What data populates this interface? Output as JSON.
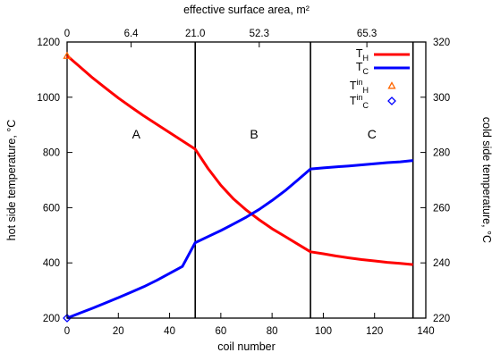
{
  "chart_data": {
    "type": "line",
    "xlabel": "coil number",
    "x2label": "effective surface area, m²",
    "ylabel": "hot side temperature, °C",
    "y2label": "cold side temperature, °C",
    "xlim": [
      0,
      140
    ],
    "ylim": [
      200,
      1200
    ],
    "y2lim": [
      220,
      320
    ],
    "x_ticks": [
      0,
      20,
      40,
      60,
      80,
      100,
      120,
      140
    ],
    "y_ticks": [
      200,
      400,
      600,
      800,
      1000,
      1200
    ],
    "y2_ticks": [
      220,
      240,
      260,
      280,
      300,
      320
    ],
    "x2_ticks": [
      {
        "x": 0,
        "label": "0"
      },
      {
        "x": 25,
        "label": "6.4"
      },
      {
        "x": 50,
        "label": "21.0"
      },
      {
        "x": 75,
        "label": "52.3"
      },
      {
        "x": 117,
        "label": "65.3"
      }
    ],
    "vertical_lines": [
      50,
      95,
      135
    ],
    "regions": [
      {
        "label": "A",
        "x": 27,
        "y": 850
      },
      {
        "label": "B",
        "x": 73,
        "y": 850
      },
      {
        "label": "C",
        "x": 119,
        "y": 850
      }
    ],
    "series": [
      {
        "name": "T_H",
        "legend_main": "T",
        "legend_sub": "H",
        "axis": "left",
        "color": "#ff0000",
        "x": [
          0,
          5,
          10,
          15,
          20,
          25,
          30,
          35,
          40,
          45,
          50,
          55,
          60,
          65,
          70,
          75,
          80,
          85,
          90,
          95,
          100,
          105,
          110,
          115,
          120,
          125,
          130,
          135
        ],
        "y": [
          1150,
          1110,
          1070,
          1033,
          997,
          964,
          932,
          902,
          872,
          842,
          812,
          742,
          681,
          631,
          591,
          556,
          524,
          496,
          468,
          440,
          433,
          425,
          418,
          412,
          407,
          402,
          398,
          394
        ]
      },
      {
        "name": "T_C",
        "legend_main": "T",
        "legend_sub": "C",
        "axis": "right",
        "color": "#0000ff",
        "x": [
          0,
          5,
          10,
          15,
          20,
          25,
          30,
          35,
          40,
          45,
          50,
          55,
          60,
          65,
          70,
          75,
          80,
          85,
          90,
          95,
          100,
          105,
          110,
          115,
          120,
          125,
          130,
          135
        ],
        "y": [
          220.0,
          221.8,
          223.6,
          225.5,
          227.4,
          229.4,
          231.4,
          233.7,
          236.2,
          238.7,
          247.3,
          249.5,
          251.7,
          254.1,
          256.6,
          259.4,
          262.6,
          266.1,
          270.0,
          274.0,
          274.4,
          274.8,
          275.1,
          275.5,
          275.9,
          276.3,
          276.6,
          277.1
        ]
      }
    ],
    "markers": [
      {
        "name": "T^in_H",
        "legend_main": "T",
        "legend_sup": "in",
        "legend_sub": "H",
        "axis": "left",
        "shape": "triangle",
        "color": "#ff6600",
        "x": 0,
        "y": 1150
      },
      {
        "name": "T^in_C",
        "legend_main": "T",
        "legend_sup": "in",
        "legend_sub": "C",
        "axis": "right",
        "shape": "diamond",
        "color": "#0000ff",
        "x": 0,
        "y": 220
      }
    ]
  }
}
